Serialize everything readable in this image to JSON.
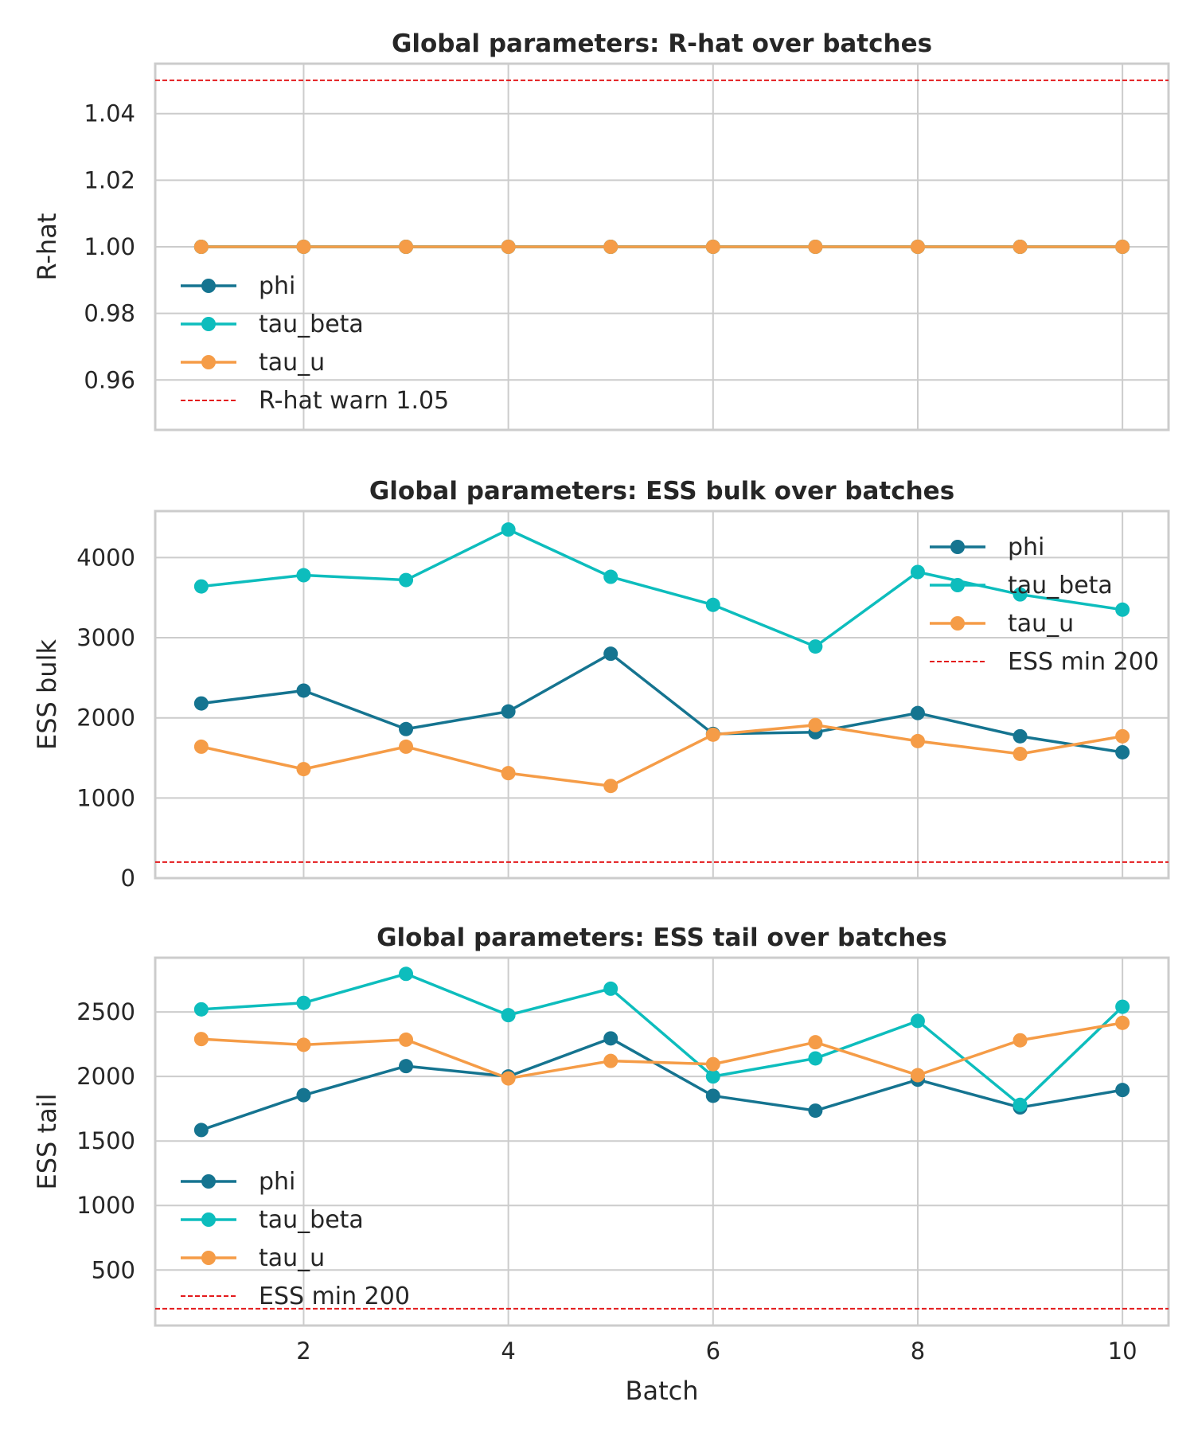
{
  "xlabel": "Batch",
  "colors": {
    "phi": "#157490",
    "tau_beta": "#0dbdbd",
    "tau_u": "#f59c47",
    "threshold": "#e31a1c"
  },
  "chart_data": [
    {
      "type": "line",
      "title": "Global parameters: R-hat over batches",
      "ylabel": "R-hat",
      "xlim": [
        0.55,
        10.45
      ],
      "ylim": [
        0.945,
        1.055
      ],
      "xticks": [
        2,
        4,
        6,
        8,
        10
      ],
      "xtick_labels": [
        "2",
        "4",
        "6",
        "8",
        "10"
      ],
      "show_xtick_labels": false,
      "yticks": [
        0.96,
        0.98,
        1.0,
        1.02,
        1.04
      ],
      "ytick_labels": [
        "0.96",
        "0.98",
        "1.00",
        "1.02",
        "1.04"
      ],
      "grid": true,
      "legend_loc": "lower-left",
      "x": [
        1,
        2,
        3,
        4,
        5,
        6,
        7,
        8,
        9,
        10
      ],
      "series": [
        {
          "name": "phi",
          "color_key": "phi",
          "values": [
            1.0,
            1.0,
            1.0,
            1.0,
            1.0,
            1.0,
            1.0,
            1.0,
            1.0,
            1.0
          ]
        },
        {
          "name": "tau_beta",
          "color_key": "tau_beta",
          "values": [
            1.0,
            1.0,
            1.0,
            1.0,
            1.0,
            1.0,
            1.0,
            1.0,
            1.0,
            1.0
          ]
        },
        {
          "name": "tau_u",
          "color_key": "tau_u",
          "values": [
            1.0,
            1.0,
            1.0,
            1.0,
            1.0,
            1.0,
            1.0,
            1.0,
            1.0,
            1.0
          ]
        }
      ],
      "threshold": {
        "name": "R-hat warn 1.05",
        "value": 1.05
      }
    },
    {
      "type": "line",
      "title": "Global parameters: ESS bulk over batches",
      "ylabel": "ESS bulk",
      "xlim": [
        0.55,
        10.45
      ],
      "ylim": [
        0,
        4580
      ],
      "xticks": [
        2,
        4,
        6,
        8,
        10
      ],
      "xtick_labels": [
        "2",
        "4",
        "6",
        "8",
        "10"
      ],
      "show_xtick_labels": false,
      "yticks": [
        0,
        1000,
        2000,
        3000,
        4000
      ],
      "ytick_labels": [
        "0",
        "1000",
        "2000",
        "3000",
        "4000"
      ],
      "grid": true,
      "legend_loc": "upper-right",
      "x": [
        1,
        2,
        3,
        4,
        5,
        6,
        7,
        8,
        9,
        10
      ],
      "series": [
        {
          "name": "phi",
          "color_key": "phi",
          "values": [
            2180,
            2340,
            1860,
            2080,
            2800,
            1800,
            1820,
            2060,
            1770,
            1570
          ]
        },
        {
          "name": "tau_beta",
          "color_key": "tau_beta",
          "values": [
            3640,
            3780,
            3720,
            4350,
            3760,
            3410,
            2890,
            3820,
            3540,
            3350
          ]
        },
        {
          "name": "tau_u",
          "color_key": "tau_u",
          "values": [
            1640,
            1360,
            1640,
            1310,
            1150,
            1790,
            1910,
            1710,
            1550,
            1770
          ]
        }
      ],
      "threshold": {
        "name": "ESS min 200",
        "value": 200
      }
    },
    {
      "type": "line",
      "title": "Global parameters: ESS tail over batches",
      "ylabel": "ESS tail",
      "xlim": [
        0.55,
        10.45
      ],
      "ylim": [
        70,
        2920
      ],
      "xticks": [
        2,
        4,
        6,
        8,
        10
      ],
      "xtick_labels": [
        "2",
        "4",
        "6",
        "8",
        "10"
      ],
      "show_xtick_labels": true,
      "yticks": [
        500,
        1000,
        1500,
        2000,
        2500
      ],
      "ytick_labels": [
        "500",
        "1000",
        "1500",
        "2000",
        "2500"
      ],
      "grid": true,
      "legend_loc": "lower-left",
      "x": [
        1,
        2,
        3,
        4,
        5,
        6,
        7,
        8,
        9,
        10
      ],
      "series": [
        {
          "name": "phi",
          "color_key": "phi",
          "values": [
            1585,
            1855,
            2080,
            2000,
            2295,
            1850,
            1735,
            1975,
            1760,
            1895
          ]
        },
        {
          "name": "tau_beta",
          "color_key": "tau_beta",
          "values": [
            2520,
            2570,
            2795,
            2475,
            2680,
            2000,
            2140,
            2430,
            1780,
            2540
          ]
        },
        {
          "name": "tau_u",
          "color_key": "tau_u",
          "values": [
            2290,
            2245,
            2285,
            1985,
            2120,
            2095,
            2265,
            2010,
            2280,
            2415
          ]
        }
      ],
      "threshold": {
        "name": "ESS min 200",
        "value": 200
      }
    }
  ]
}
